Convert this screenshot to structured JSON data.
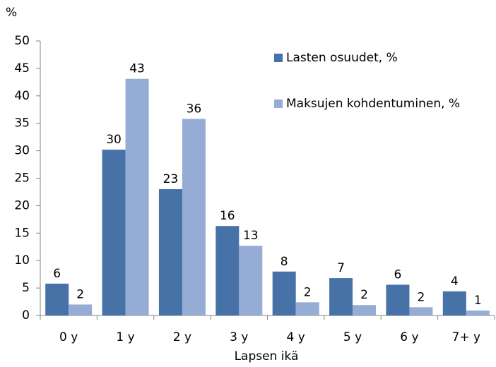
{
  "chart_data": {
    "type": "bar",
    "y_label": "%",
    "x_label": "Lapsen ikä",
    "categories": [
      "0 y",
      "1 y",
      "2 y",
      "3 y",
      "4 y",
      "5 y",
      "6 y",
      "7+ y"
    ],
    "series": [
      {
        "name": "Lasten osuudet, %",
        "color": "#4672a8",
        "values": [
          5.8,
          30.2,
          23,
          16.3,
          8,
          6.8,
          5.6,
          4.4
        ],
        "value_labels": [
          "6",
          "30",
          "23",
          "16",
          "8",
          "7",
          "6",
          "4"
        ]
      },
      {
        "name": "Maksujen kohdentuminen, %",
        "color": "#95acd4",
        "values": [
          2,
          43.1,
          35.8,
          12.7,
          2.4,
          1.9,
          1.5,
          0.9
        ],
        "value_labels": [
          "2",
          "43",
          "36",
          "13",
          "2",
          "2",
          "2",
          "1"
        ]
      }
    ],
    "ylim": [
      0,
      50
    ],
    "yticks": [
      0,
      5,
      10,
      15,
      20,
      25,
      30,
      35,
      40,
      45,
      50
    ],
    "legend": "top-right"
  }
}
